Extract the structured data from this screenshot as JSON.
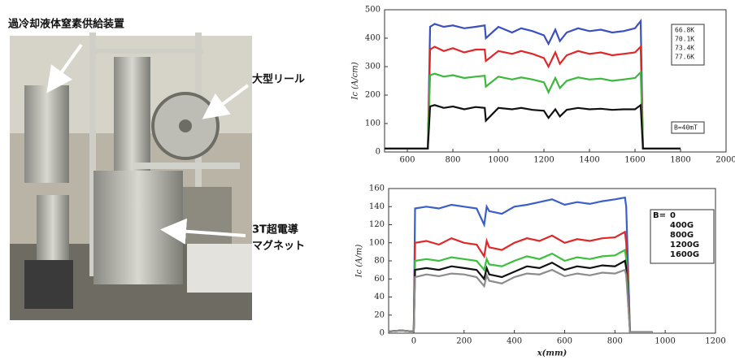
{
  "photo": {
    "labels": [
      "過冷却液体窒素供給装置",
      "大型リール",
      "3T超電導",
      "マグネット"
    ]
  },
  "chart_data": [
    {
      "type": "line",
      "ylabel": "Ic (A/cm)",
      "annotation": "B=40mT",
      "xlim": [
        500,
        2000
      ],
      "xticks": [
        600,
        800,
        1000,
        1200,
        1400,
        1600,
        1800,
        2000
      ],
      "ylim": [
        0,
        500
      ],
      "yticks": [
        0,
        100,
        200,
        300,
        400,
        500
      ],
      "x": [
        500,
        690,
        700,
        720,
        760,
        800,
        850,
        900,
        940,
        945,
        1000,
        1060,
        1100,
        1150,
        1200,
        1220,
        1250,
        1270,
        1300,
        1350,
        1400,
        1450,
        1500,
        1550,
        1600,
        1625,
        1635,
        1700,
        1800
      ],
      "series": [
        {
          "name": "66.8K",
          "color": "#3a4fc0",
          "values": [
            12,
            12,
            440,
            450,
            440,
            445,
            435,
            440,
            445,
            400,
            440,
            420,
            435,
            425,
            410,
            380,
            430,
            390,
            420,
            435,
            425,
            430,
            420,
            425,
            435,
            460,
            12,
            12,
            12
          ]
        },
        {
          "name": "70.1K",
          "color": "#e02828",
          "values": [
            12,
            12,
            360,
            370,
            355,
            365,
            350,
            360,
            360,
            320,
            355,
            345,
            355,
            345,
            330,
            300,
            350,
            310,
            340,
            355,
            345,
            350,
            340,
            345,
            350,
            370,
            12,
            12,
            12
          ]
        },
        {
          "name": "73.4K",
          "color": "#3cb83c",
          "values": [
            12,
            12,
            270,
            275,
            265,
            270,
            260,
            265,
            268,
            230,
            265,
            255,
            262,
            255,
            245,
            210,
            260,
            225,
            250,
            262,
            255,
            258,
            250,
            255,
            260,
            280,
            12,
            12,
            12
          ]
        },
        {
          "name": "77.6K",
          "color": "#111111",
          "values": [
            12,
            12,
            160,
            165,
            155,
            160,
            150,
            158,
            155,
            110,
            155,
            150,
            155,
            148,
            145,
            120,
            150,
            125,
            148,
            155,
            150,
            152,
            148,
            150,
            150,
            165,
            12,
            12,
            12
          ]
        }
      ]
    },
    {
      "type": "line",
      "xlabel": "x(mm)",
      "ylabel": "Ic (A/m)",
      "legend_title": "B=",
      "xlim": [
        -100,
        1200
      ],
      "xticks": [
        0,
        200,
        400,
        600,
        800,
        1000,
        1200
      ],
      "ylim": [
        0,
        160
      ],
      "yticks": [
        0,
        20,
        40,
        60,
        80,
        100,
        120,
        140,
        160
      ],
      "x": [
        -100,
        -50,
        -10,
        0,
        5,
        50,
        100,
        150,
        200,
        250,
        280,
        290,
        300,
        350,
        400,
        450,
        500,
        550,
        600,
        650,
        700,
        750,
        800,
        840,
        845,
        860,
        900,
        950
      ],
      "series": [
        {
          "name": "0",
          "color": "#3a5fc8",
          "values": [
            2,
            3,
            2,
            2,
            138,
            140,
            138,
            142,
            140,
            138,
            120,
            140,
            135,
            132,
            140,
            142,
            145,
            148,
            142,
            145,
            143,
            146,
            148,
            150,
            140,
            1,
            1,
            1
          ]
        },
        {
          "name": "400G",
          "color": "#e02828",
          "values": [
            2,
            3,
            2,
            2,
            100,
            102,
            98,
            105,
            100,
            98,
            85,
            102,
            95,
            92,
            100,
            105,
            102,
            108,
            100,
            104,
            102,
            105,
            106,
            112,
            100,
            1,
            1,
            1
          ]
        },
        {
          "name": "800G",
          "color": "#3cc03c",
          "values": [
            2,
            3,
            2,
            2,
            80,
            82,
            80,
            84,
            82,
            80,
            70,
            82,
            76,
            74,
            80,
            85,
            82,
            88,
            80,
            84,
            82,
            85,
            86,
            92,
            82,
            1,
            1,
            1
          ]
        },
        {
          "name": "1200G",
          "color": "#111111",
          "values": [
            2,
            3,
            2,
            2,
            70,
            72,
            70,
            74,
            72,
            70,
            60,
            72,
            65,
            62,
            68,
            74,
            72,
            78,
            70,
            74,
            72,
            75,
            74,
            80,
            72,
            1,
            1,
            1
          ]
        },
        {
          "name": "1600G",
          "color": "#8c8c8c",
          "values": [
            2,
            3,
            2,
            2,
            62,
            65,
            63,
            66,
            65,
            62,
            52,
            64,
            58,
            55,
            62,
            66,
            65,
            70,
            63,
            66,
            64,
            67,
            66,
            70,
            64,
            1,
            1,
            1
          ]
        }
      ]
    }
  ]
}
